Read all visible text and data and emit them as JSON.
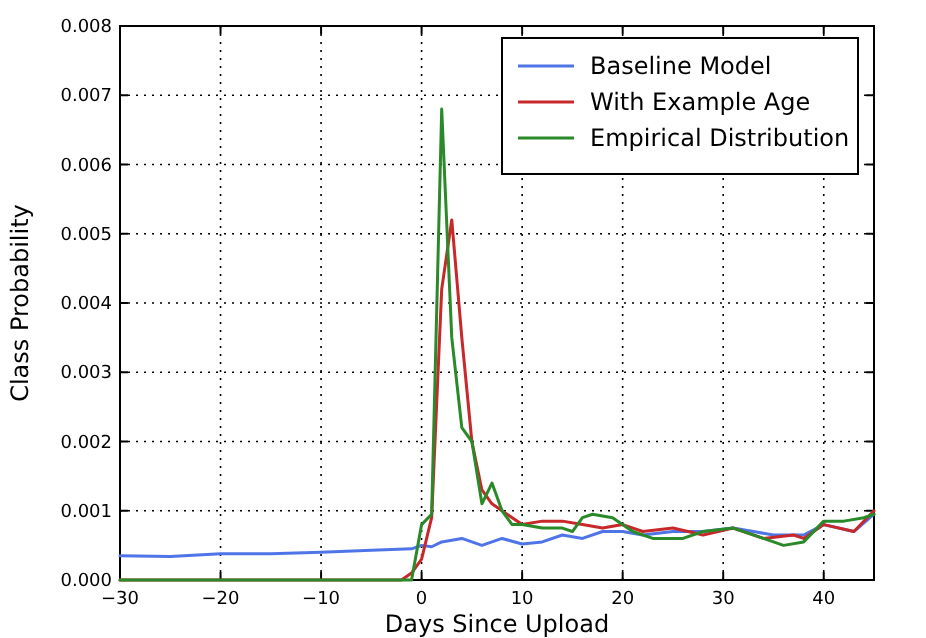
{
  "chart_data": {
    "type": "line",
    "xlabel": "Days Since Upload",
    "ylabel": "Class Probability",
    "xlim": [
      -30,
      45
    ],
    "xticks": [
      {
        "value": -30,
        "label": "−30"
      },
      {
        "value": -20,
        "label": "−20"
      },
      {
        "value": -10,
        "label": "−10"
      },
      0,
      10,
      20,
      30,
      40
    ],
    "ylim": [
      0,
      0.008
    ],
    "yticks": [
      {
        "value": 0,
        "label": "0.000"
      },
      {
        "value": 0.001,
        "label": "0.001"
      },
      {
        "value": 0.002,
        "label": "0.002"
      },
      {
        "value": 0.003,
        "label": "0.003"
      },
      {
        "value": 0.004,
        "label": "0.004"
      },
      {
        "value": 0.005,
        "label": "0.005"
      },
      {
        "value": 0.006,
        "label": "0.006"
      },
      {
        "value": 0.007,
        "label": "0.007"
      },
      {
        "value": 0.008,
        "label": "0.008"
      }
    ],
    "grid": true,
    "legend": "top right",
    "line_style": "solid",
    "series": [
      {
        "name": "Baseline Model",
        "color": "#4f74e8",
        "x": [
          -30,
          -25,
          -20,
          -15,
          -10,
          -5,
          -1,
          0,
          1,
          2,
          4,
          6,
          8,
          10,
          12,
          14,
          16,
          18,
          20,
          22,
          25,
          28,
          31,
          33,
          35,
          38,
          40,
          43,
          45
        ],
        "values": [
          0.00035,
          0.00034,
          0.00038,
          0.00038,
          0.0004,
          0.00043,
          0.00045,
          0.0005,
          0.00048,
          0.00055,
          0.0006,
          0.0005,
          0.0006,
          0.00052,
          0.00055,
          0.00065,
          0.0006,
          0.0007,
          0.0007,
          0.00065,
          0.0007,
          0.0007,
          0.00075,
          0.0007,
          0.00065,
          0.00065,
          0.0008,
          0.0007,
          0.00095
        ]
      },
      {
        "name": "With Example Age",
        "color": "#c8282a",
        "x": [
          -30,
          -2,
          -1,
          0,
          1,
          2,
          3,
          4,
          5,
          6,
          7,
          8,
          10,
          12,
          14,
          16,
          18,
          20,
          22,
          25,
          28,
          31,
          34,
          37,
          38,
          40,
          43,
          45
        ],
        "values": [
          0,
          0,
          0.0001,
          0.0003,
          0.0009,
          0.0042,
          0.0052,
          0.0035,
          0.002,
          0.0013,
          0.0011,
          0.001,
          0.0008,
          0.00085,
          0.00085,
          0.0008,
          0.00075,
          0.0008,
          0.0007,
          0.00075,
          0.00065,
          0.00075,
          0.0006,
          0.00065,
          0.0006,
          0.0008,
          0.0007,
          0.001
        ]
      },
      {
        "name": "Empirical Distribution",
        "color": "#2a8a2a",
        "x": [
          -30,
          -1,
          0,
          1,
          2,
          3,
          4,
          5,
          6,
          7,
          8,
          9,
          10,
          12,
          14,
          15,
          16,
          17,
          19,
          21,
          23,
          26,
          28,
          31,
          34,
          36,
          38,
          40,
          42,
          44,
          45
        ],
        "values": [
          0,
          0,
          0.0008,
          0.00095,
          0.0068,
          0.0035,
          0.0022,
          0.002,
          0.0011,
          0.0014,
          0.001,
          0.0008,
          0.0008,
          0.00075,
          0.00075,
          0.0007,
          0.0009,
          0.00095,
          0.0009,
          0.0007,
          0.0006,
          0.0006,
          0.0007,
          0.00075,
          0.0006,
          0.0005,
          0.00055,
          0.00085,
          0.00085,
          0.0009,
          0.00095
        ]
      }
    ]
  }
}
